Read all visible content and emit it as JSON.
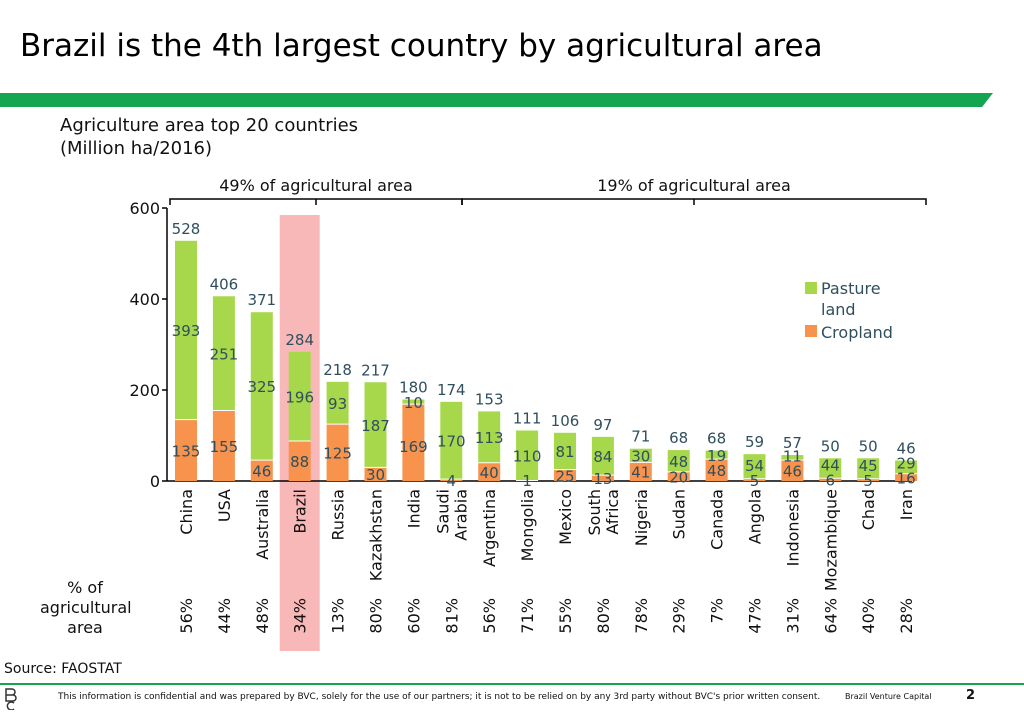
{
  "slide": {
    "title": "Brazil is the 4th largest country by agricultural area",
    "subtitle_line1": "Agriculture area top 20 countries",
    "subtitle_line2": "(Million ha/2016)",
    "bracket_left_label": "49% of agricultural area",
    "bracket_right_label": "19% of agricultural area",
    "pct_caption_line1": "% of",
    "pct_caption_line2": "agricultural",
    "pct_caption_line3": "area",
    "source": "Source: FAOSTAT",
    "confidential": "This information is confidential and was prepared by BVC, solely for the use of our partners; it is not to be relied on by any 3rd party without BVC's prior written consent.",
    "brand": "Brazil Venture Capital",
    "page_number": "2"
  },
  "colors": {
    "pasture": "#a7d84b",
    "cropland": "#f7934c",
    "highlight": "#f9b8b8",
    "label_text": "#2f4f5f",
    "band": "#14a550"
  },
  "chart_data": {
    "type": "bar",
    "stacked": true,
    "categories": [
      "China",
      "USA",
      "Australia",
      "Brazil",
      "Russia",
      "Kazakhstan",
      "India",
      "Saudi Arabia",
      "Argentina",
      "Mongolia",
      "Mexico",
      "South Africa",
      "Nigeria",
      "Sudan",
      "Canada",
      "Angola",
      "Indonesia",
      "Mozambique",
      "Chad",
      "Iran"
    ],
    "series": [
      {
        "name": "Cropland",
        "values": [
          135,
          155,
          46,
          88,
          125,
          30,
          169,
          4,
          40,
          1,
          25,
          13,
          41,
          20,
          48,
          5,
          46,
          6,
          5,
          16
        ]
      },
      {
        "name": "Pasture land",
        "values": [
          393,
          251,
          325,
          196,
          93,
          187,
          10,
          170,
          113,
          110,
          81,
          84,
          30,
          48,
          19,
          54,
          11,
          44,
          45,
          29
        ]
      }
    ],
    "totals": [
      528,
      406,
      371,
      284,
      218,
      217,
      180,
      174,
      153,
      111,
      106,
      97,
      71,
      68,
      68,
      59,
      57,
      50,
      50,
      46
    ],
    "pct_agricultural_area": [
      "56%",
      "44%",
      "48%",
      "34%",
      "13%",
      "80%",
      "60%",
      "81%",
      "56%",
      "71%",
      "55%",
      "80%",
      "78%",
      "29%",
      "7%",
      "47%",
      "31%",
      "64%",
      "40%",
      "28%"
    ],
    "highlight_category": "Brazil",
    "ylim": [
      0,
      600
    ],
    "yticks": [
      0,
      200,
      400,
      600
    ],
    "xlabel": "",
    "ylabel": "",
    "legend": [
      "Pasture land",
      "Cropland"
    ],
    "legend_placement": "right",
    "grid": false
  }
}
